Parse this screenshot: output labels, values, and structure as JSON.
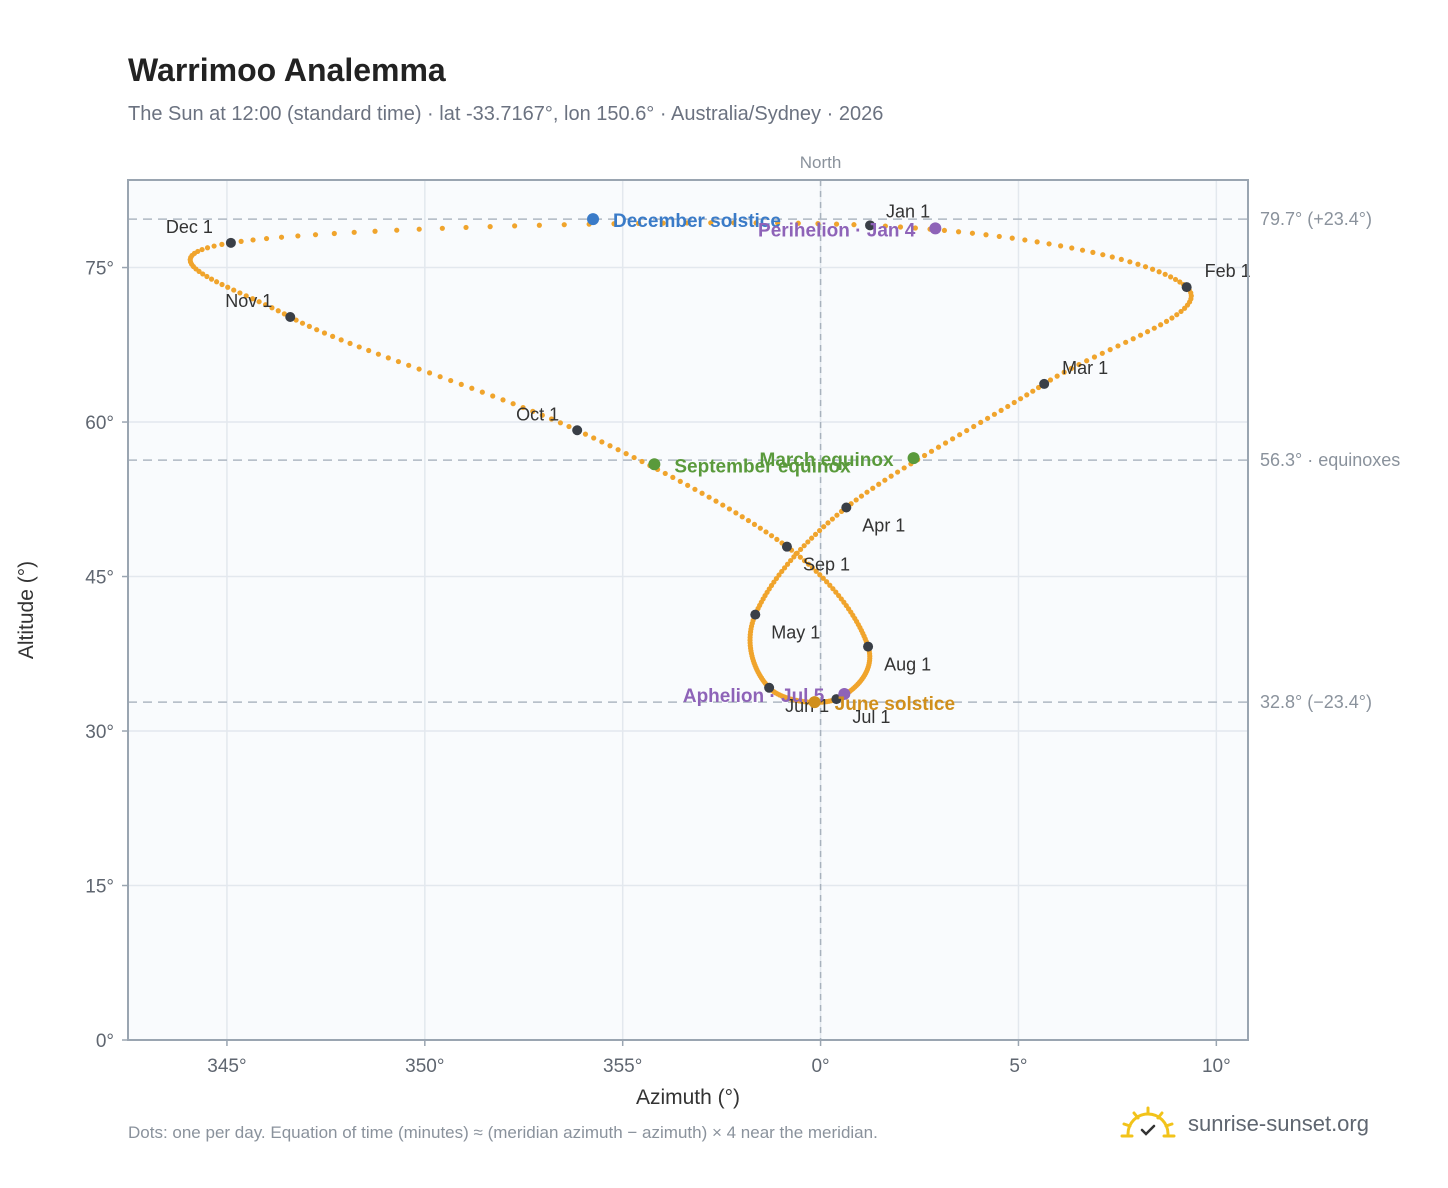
{
  "title": "Warrimoo Analemma",
  "subtitle": "The Sun at 12:00 (standard time) · lat -33.7167°, lon 150.6° · Australia/Sydney · 2026",
  "footnote": "Dots: one per day. Equation of time (minutes) ≈ (meridian azimuth − azimuth) × 4 near the meridian.",
  "brand": {
    "name": "sunrise-sunset.org",
    "icon": "sun-logo-icon"
  },
  "chart_data": {
    "type": "scatter",
    "xlabel": "Azimuth (°)",
    "ylabel": "Altitude (°)",
    "top_label": "North",
    "xlim": [
      342.5,
      10.8
    ],
    "ylim": [
      0,
      83.5
    ],
    "xticks": [
      {
        "value": 345,
        "label": "345°"
      },
      {
        "value": 350,
        "label": "350°"
      },
      {
        "value": 355,
        "label": "355°"
      },
      {
        "value": 0,
        "label": "0°"
      },
      {
        "value": 5,
        "label": "5°"
      },
      {
        "value": 10,
        "label": "10°"
      }
    ],
    "yticks": [
      {
        "value": 0,
        "label": "0°"
      },
      {
        "value": 15,
        "label": "15°"
      },
      {
        "value": 30,
        "label": "30°"
      },
      {
        "value": 45,
        "label": "45°"
      },
      {
        "value": 60,
        "label": "60°"
      },
      {
        "value": 75,
        "label": "75°"
      }
    ],
    "reference_lines": [
      {
        "value": 79.7,
        "label": "79.7° (+23.4°)"
      },
      {
        "value": 56.3,
        "label": "56.3° · equinoxes"
      },
      {
        "value": 32.8,
        "label": "32.8° (−23.4°)"
      }
    ],
    "meridian_azimuth": 0,
    "series": [
      {
        "color": "#f0a42c",
        "points": [
          [
            1.25,
            79.1
          ],
          [
            9.25,
            73.1
          ],
          [
            5.65,
            63.7
          ],
          [
            0.65,
            51.7
          ],
          [
            -1.65,
            41.3
          ],
          [
            -1.3,
            34.2
          ],
          [
            0.4,
            33.1
          ],
          [
            1.2,
            38.2
          ],
          [
            -0.85,
            47.9
          ],
          [
            -6.15,
            59.2
          ],
          [
            -13.4,
            70.2
          ],
          [
            -14.9,
            77.4
          ],
          [
            -17.0,
            78.6
          ],
          [
            -16.0,
            74.8
          ],
          [
            -7.5,
            58.1
          ],
          [
            3.0,
            78.8
          ],
          [
            8.5,
            75.8
          ],
          [
            -1.8,
            36.5
          ],
          [
            1.0,
            35.8
          ]
        ]
      }
    ],
    "month_markers": [
      {
        "label": "Jan 1",
        "az": 1.25,
        "alt": 79.1,
        "pos": "above"
      },
      {
        "label": "Feb 1",
        "az": 9.25,
        "alt": 73.1,
        "pos": "right"
      },
      {
        "label": "Mar 1",
        "az": 5.65,
        "alt": 63.7,
        "pos": "right"
      },
      {
        "label": "Apr 1",
        "az": 0.65,
        "alt": 51.7,
        "pos": "below-right"
      },
      {
        "label": "May 1",
        "az": -1.65,
        "alt": 41.3,
        "pos": "below-right"
      },
      {
        "label": "Jun 1",
        "az": -1.3,
        "alt": 34.2,
        "pos": "below-right"
      },
      {
        "label": "Jul 1",
        "az": 0.4,
        "alt": 33.1,
        "pos": "below-right"
      },
      {
        "label": "Aug 1",
        "az": 1.2,
        "alt": 38.2,
        "pos": "below-right"
      },
      {
        "label": "Sep 1",
        "az": -0.85,
        "alt": 47.9,
        "pos": "below-right"
      },
      {
        "label": "Oct 1",
        "az": -6.15,
        "alt": 59.2,
        "pos": "left"
      },
      {
        "label": "Nov 1",
        "az": -13.4,
        "alt": 70.2,
        "pos": "left"
      },
      {
        "label": "Dec 1",
        "az": -14.9,
        "alt": 77.4,
        "pos": "left"
      }
    ],
    "events": [
      {
        "label": "December solstice",
        "az": -5.75,
        "alt": 79.7,
        "color": "#3a7bc8"
      },
      {
        "label": "Perihelion · Jan 4",
        "az": 2.9,
        "alt": 78.8,
        "color": "#8e63b8"
      },
      {
        "label": "March equinox",
        "az": 2.35,
        "alt": 56.5,
        "color": "#5a9a3c"
      },
      {
        "label": "September equinox",
        "az": -4.2,
        "alt": 55.9,
        "color": "#5a9a3c"
      },
      {
        "label": "Aphelion · Jul 5",
        "az": 0.6,
        "alt": 33.6,
        "color": "#8e63b8"
      },
      {
        "label": "June solstice",
        "az": -0.15,
        "alt": 32.8,
        "color": "#d08f1c"
      }
    ]
  }
}
